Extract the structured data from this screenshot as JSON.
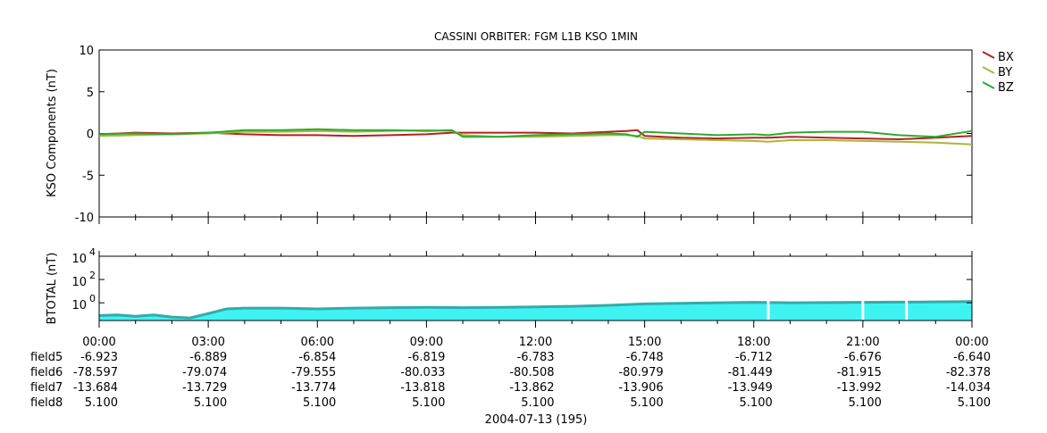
{
  "chart_data": [
    {
      "type": "line",
      "title": "CASSINI ORBITER: FGM L1B KSO 1MIN",
      "ylabel": "KSO Components (nT)",
      "ylim": [
        -10,
        10
      ],
      "yticks": [
        10,
        5,
        0,
        -5,
        -10
      ],
      "x_hours": [
        0,
        1,
        2,
        3,
        4,
        5,
        6,
        7,
        8,
        9,
        9.7,
        10,
        11,
        12,
        13,
        14,
        14.5,
        14.8,
        15,
        16,
        17,
        18,
        18.4,
        19,
        20,
        21,
        22,
        23,
        24
      ],
      "legend_position": "right",
      "series": [
        {
          "name": "BX",
          "color": "#b22222",
          "values": [
            -0.1,
            0.1,
            0.0,
            0.1,
            -0.1,
            -0.2,
            -0.2,
            -0.3,
            -0.2,
            -0.1,
            0.1,
            0.1,
            0.1,
            0.1,
            0.0,
            0.2,
            0.3,
            0.4,
            -0.3,
            -0.5,
            -0.6,
            -0.5,
            -0.5,
            -0.4,
            -0.5,
            -0.6,
            -0.7,
            -0.5,
            -0.3
          ]
        },
        {
          "name": "BY",
          "color": "#adb53a",
          "values": [
            -0.3,
            -0.2,
            -0.1,
            0.0,
            0.2,
            0.2,
            0.3,
            0.2,
            0.3,
            0.4,
            0.3,
            -0.2,
            -0.4,
            -0.4,
            -0.3,
            -0.2,
            -0.2,
            -0.3,
            -0.6,
            -0.7,
            -0.8,
            -0.9,
            -1.0,
            -0.8,
            -0.8,
            -0.9,
            -1.0,
            -1.1,
            -1.3
          ]
        },
        {
          "name": "BZ",
          "color": "#2eaa2e",
          "values": [
            -0.1,
            0.0,
            -0.1,
            0.1,
            0.4,
            0.4,
            0.5,
            0.4,
            0.4,
            0.3,
            0.4,
            -0.4,
            -0.4,
            -0.2,
            -0.1,
            0.0,
            -0.1,
            -0.4,
            0.2,
            0.0,
            -0.2,
            -0.1,
            -0.2,
            0.1,
            0.2,
            0.2,
            -0.2,
            -0.4,
            0.3
          ]
        }
      ]
    },
    {
      "type": "area",
      "ylabel": "BTOTAL (nT)",
      "yscale": "log",
      "ylim": [
        0.03,
        10000
      ],
      "yticks": [
        {
          "base": "10",
          "exp": "4",
          "value": 10000
        },
        {
          "base": "10",
          "exp": "2",
          "value": 100
        },
        {
          "base": "10",
          "exp": "0",
          "value": 1
        }
      ],
      "color": "#3ff3f3",
      "line_color": "#35aaaa",
      "x_hours": [
        0,
        0.5,
        1,
        1.5,
        2,
        2.5,
        3,
        3.5,
        4,
        5,
        6,
        7,
        8,
        9,
        10,
        11,
        12,
        13,
        14,
        15,
        16,
        17,
        18,
        19,
        20,
        21,
        22,
        23,
        24
      ],
      "values": [
        0.08,
        0.09,
        0.07,
        0.09,
        0.06,
        0.05,
        0.12,
        0.3,
        0.35,
        0.35,
        0.3,
        0.35,
        0.38,
        0.4,
        0.38,
        0.4,
        0.45,
        0.5,
        0.6,
        0.8,
        0.9,
        1.0,
        1.1,
        1.0,
        1.05,
        1.1,
        1.15,
        1.2,
        1.3
      ],
      "gaps_hours": [
        18.4,
        21.0,
        22.2
      ]
    }
  ],
  "xaxis": {
    "tick_hours": [
      0,
      3,
      6,
      9,
      12,
      15,
      18,
      21,
      24
    ],
    "minor_hours": [
      1,
      2,
      4,
      5,
      7,
      8,
      10,
      11,
      13,
      14,
      16,
      17,
      19,
      20,
      22,
      23
    ],
    "tick_labels": [
      "00:00",
      "03:00",
      "06:00",
      "09:00",
      "12:00",
      "15:00",
      "18:00",
      "21:00",
      "00:00"
    ],
    "rows": [
      {
        "name": "field5",
        "values": [
          "-6.923",
          "-6.889",
          "-6.854",
          "-6.819",
          "-6.783",
          "-6.748",
          "-6.712",
          "-6.676",
          "-6.640"
        ]
      },
      {
        "name": "field6",
        "values": [
          "-78.597",
          "-79.074",
          "-79.555",
          "-80.033",
          "-80.508",
          "-80.979",
          "-81.449",
          "-81.915",
          "-82.378"
        ]
      },
      {
        "name": "field7",
        "values": [
          "-13.684",
          "-13.729",
          "-13.774",
          "-13.818",
          "-13.862",
          "-13.906",
          "-13.949",
          "-13.992",
          "-14.034"
        ]
      },
      {
        "name": "field8",
        "values": [
          "5.100",
          "5.100",
          "5.100",
          "5.100",
          "5.100",
          "5.100",
          "5.100",
          "5.100",
          "5.100"
        ]
      }
    ],
    "date_label": "2004-07-13 (195)"
  }
}
